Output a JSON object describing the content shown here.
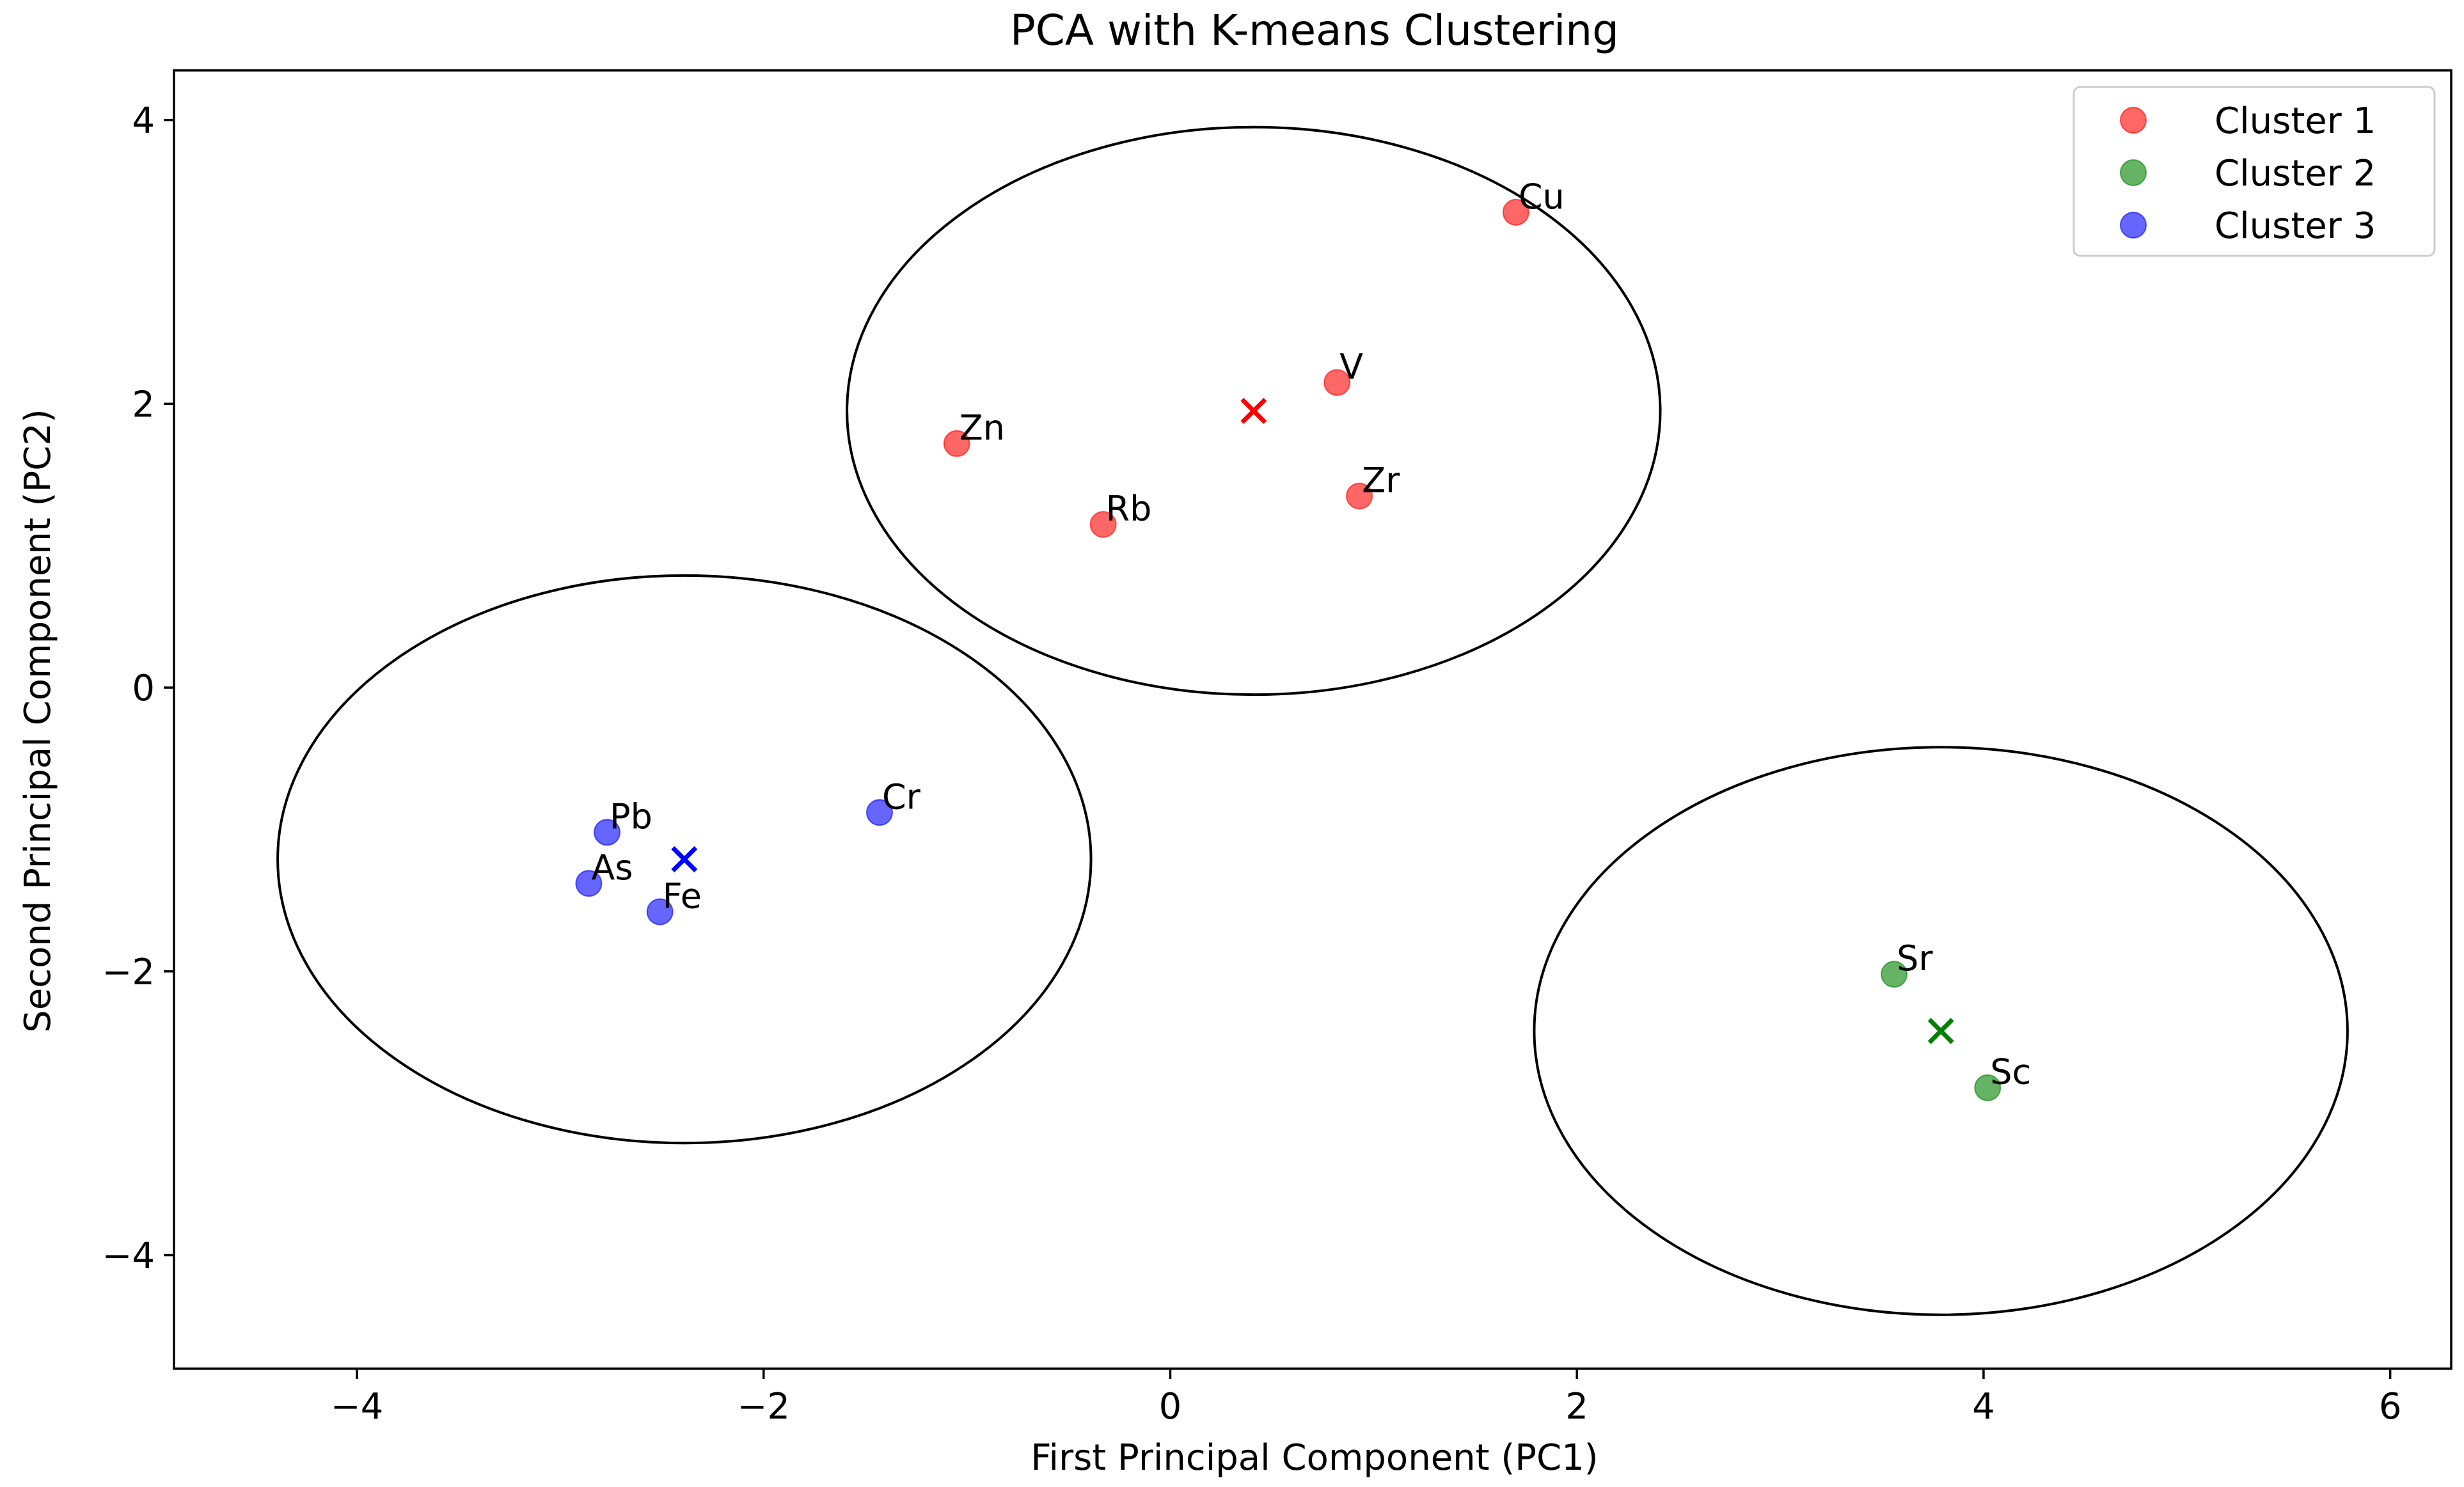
{
  "chart_data": {
    "type": "scatter",
    "title": "PCA with K-means Clustering",
    "xlabel": "First Principal Component (PC1)",
    "ylabel": "Second Principal Component (PC2)",
    "xlim": [
      -4.9,
      6.3
    ],
    "ylim": [
      -4.8,
      4.35
    ],
    "xticks": [
      -4,
      -2,
      0,
      2,
      4,
      6
    ],
    "xtick_labels": [
      "−4",
      "−2",
      "0",
      "2",
      "4",
      "6"
    ],
    "yticks": [
      -4,
      -2,
      0,
      2,
      4
    ],
    "ytick_labels": [
      "−4",
      "−2",
      "0",
      "2",
      "4"
    ],
    "grid": false,
    "legend_position": "top-right",
    "series": [
      {
        "name": "Cluster 1",
        "color": "#ff0000",
        "points": [
          {
            "label": "Cu",
            "x": 1.7,
            "y": 3.35
          },
          {
            "label": "V",
            "x": 0.82,
            "y": 2.15
          },
          {
            "label": "Zn",
            "x": -1.05,
            "y": 1.72
          },
          {
            "label": "Zr",
            "x": 0.93,
            "y": 1.35
          },
          {
            "label": "Rb",
            "x": -0.33,
            "y": 1.15
          }
        ],
        "centroid": {
          "x": 0.41,
          "y": 1.95
        },
        "radius": 2.0
      },
      {
        "name": "Cluster 2",
        "color": "#008000",
        "points": [
          {
            "label": "Sr",
            "x": 3.56,
            "y": -2.02
          },
          {
            "label": "Sc",
            "x": 4.02,
            "y": -2.82
          }
        ],
        "centroid": {
          "x": 3.79,
          "y": -2.42
        },
        "radius": 2.0
      },
      {
        "name": "Cluster 3",
        "color": "#0000ff",
        "points": [
          {
            "label": "Pb",
            "x": -2.77,
            "y": -1.02
          },
          {
            "label": "As",
            "x": -2.86,
            "y": -1.38
          },
          {
            "label": "Fe",
            "x": -2.51,
            "y": -1.58
          },
          {
            "label": "Cr",
            "x": -1.43,
            "y": -0.88
          }
        ],
        "centroid": {
          "x": -2.39,
          "y": -1.21
        },
        "radius": 2.0
      }
    ]
  }
}
